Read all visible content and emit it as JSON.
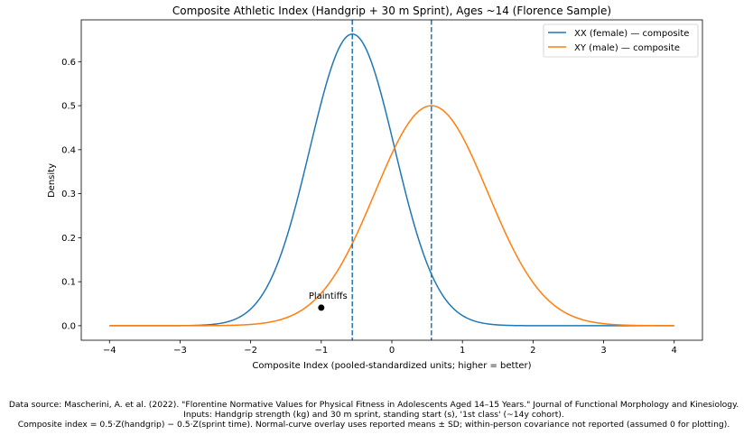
{
  "chart_data": {
    "type": "line",
    "title": "Composite Athletic Index (Handgrip + 30 m Sprint), Ages ~14 (Florence Sample)",
    "xlabel": "Composite Index (pooled-standardized units; higher = better)",
    "ylabel": "Density",
    "xlim": [
      -4.4,
      4.4
    ],
    "ylim": [
      -0.033,
      0.695
    ],
    "xticks": [
      -4,
      -3,
      -2,
      -1,
      0,
      1,
      2,
      3,
      4
    ],
    "xtick_labels": [
      "−4",
      "−3",
      "−2",
      "−1",
      "0",
      "1",
      "2",
      "3",
      "4"
    ],
    "yticks": [
      0.0,
      0.1,
      0.2,
      0.3,
      0.4,
      0.5,
      0.6
    ],
    "ytick_labels": [
      "0.0",
      "0.1",
      "0.2",
      "0.3",
      "0.4",
      "0.5",
      "0.6"
    ],
    "grid": false,
    "legend_position": "top-right",
    "x_range": [
      -4,
      4
    ],
    "series": [
      {
        "name": "XX (female) — composite",
        "distribution": "normal",
        "mean": -0.56,
        "sd": 0.602,
        "peak_density": 0.663,
        "color": "#1f77b4"
      },
      {
        "name": "XY (male) — composite",
        "distribution": "normal",
        "mean": 0.56,
        "sd": 0.798,
        "peak_density": 0.5,
        "color": "#ff7f0e"
      }
    ],
    "vlines": [
      {
        "x": -0.56,
        "style": "dashed",
        "color": "#1f77b4"
      },
      {
        "x": 0.56,
        "style": "dashed",
        "color": "#1f77b4"
      }
    ],
    "annotations": [
      {
        "label": "Plaintiffs",
        "x": -1.0,
        "y": 0.041,
        "color": "#000000"
      }
    ]
  },
  "footer": {
    "line1": "Data source: Mascherini, A. et al. (2022). \"Florentine Normative Values for Physical Fitness in Adolescents Aged 14–15 Years.\" Journal of Functional Morphology and Kinesiology.",
    "line2": "Inputs: Handgrip strength (kg) and 30 m sprint, standing start (s), '1st class' (~14y cohort).",
    "line3": "Composite index = 0.5·Z(handgrip) − 0.5·Z(sprint time). Normal-curve overlay uses reported means ± SD; within-person covariance not reported (assumed 0 for plotting)."
  }
}
